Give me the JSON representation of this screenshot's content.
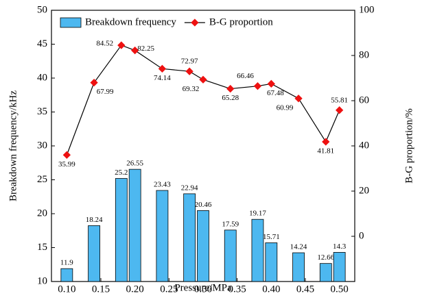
{
  "chart_data": {
    "type": "bar-line",
    "x_label": "Pressure/MPa",
    "y_label": "Breakdown frequency/kHz",
    "y2_label": "B-G proportion/%",
    "xlim": [
      0.0775,
      0.5225
    ],
    "xticks": [
      {
        "value": 0.1,
        "label": "0.10"
      },
      {
        "value": 0.15,
        "label": "0.15"
      },
      {
        "value": 0.2,
        "label": "0.20"
      },
      {
        "value": 0.25,
        "label": "0.25"
      },
      {
        "value": 0.3,
        "label": "0.30"
      },
      {
        "value": 0.35,
        "label": "0.35"
      },
      {
        "value": 0.4,
        "label": "0.40"
      },
      {
        "value": 0.45,
        "label": "0.45"
      },
      {
        "value": 0.5,
        "label": "0.50"
      }
    ],
    "ylim": [
      10,
      50
    ],
    "yticks": [
      10,
      15,
      20,
      25,
      30,
      35,
      40,
      45,
      50
    ],
    "y2lim": [
      -20,
      100
    ],
    "y2ticks": [
      0,
      20,
      40,
      60,
      80,
      100
    ],
    "x": [
      0.1,
      0.14,
      0.18,
      0.2,
      0.24,
      0.28,
      0.3,
      0.34,
      0.38,
      0.4,
      0.44,
      0.48,
      0.5
    ],
    "legend": "top",
    "series": [
      {
        "name": "Breakdown frequency",
        "type": "bar",
        "color": "#4db8f0",
        "values": [
          11.9,
          18.24,
          25.2,
          26.55,
          23.43,
          22.94,
          20.46,
          17.59,
          19.17,
          15.71,
          14.24,
          12.66,
          14.3
        ]
      },
      {
        "name": "B-G proportion",
        "type": "line",
        "axis": "y2",
        "color": "#ee1111",
        "values": [
          35.99,
          67.99,
          84.52,
          82.25,
          74.14,
          72.97,
          69.32,
          65.28,
          66.46,
          67.48,
          60.99,
          41.81,
          55.81
        ]
      }
    ]
  }
}
